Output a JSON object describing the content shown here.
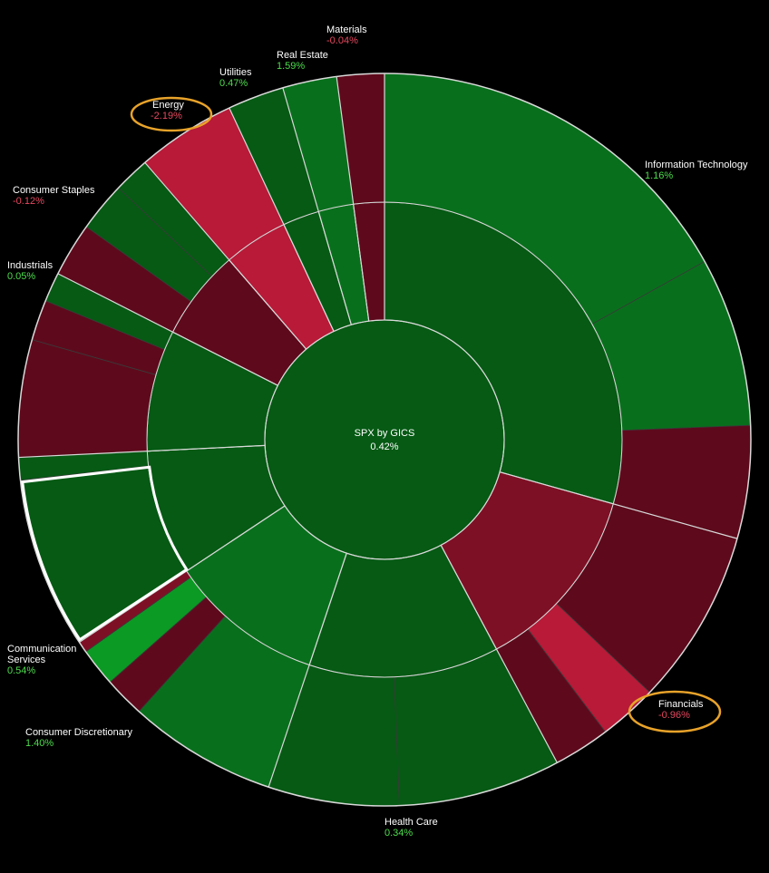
{
  "chart_data": {
    "type": "sunburst",
    "title": "SPX by GICS",
    "total_change": "0.42%",
    "colors": {
      "positive_strong": "#0b9a23",
      "positive": "#08701c",
      "positive_dark": "#065a14",
      "negative_dark": "#5e0a1c",
      "negative": "#7e1025",
      "negative_strong": "#b81a38",
      "highlight_circle": "#e8a32a",
      "highlight_box": "#ffffff",
      "border": "#d9d9d9"
    },
    "sectors": [
      {
        "name": "Information Technology",
        "change": "1.16%",
        "weight": 29.5,
        "sign": "pos",
        "subgroups": [
          {
            "weight": 17.0,
            "color": "#08701c"
          },
          {
            "weight": 7.5,
            "color": "#08701c"
          },
          {
            "weight": 5.0,
            "color": "#5e0a1c"
          }
        ]
      },
      {
        "name": "Financials",
        "change": "-0.96%",
        "weight": 12.9,
        "sign": "neg",
        "subgroups": [
          {
            "weight": 7.8,
            "color": "#5e0a1c"
          },
          {
            "weight": 2.6,
            "color": "#b81a38"
          },
          {
            "weight": 2.5,
            "color": "#5e0a1c"
          }
        ]
      },
      {
        "name": "Health Care",
        "change": "0.34%",
        "weight": 13.0,
        "sign": "pos",
        "subgroups": [
          {
            "weight": 7.2,
            "color": "#065a14"
          },
          {
            "weight": 5.8,
            "color": "#065a14"
          }
        ]
      },
      {
        "name": "Consumer Discretionary",
        "change": "1.40%",
        "weight": 10.6,
        "sign": "pos",
        "subgroups": [
          {
            "weight": 6.6,
            "color": "#08701c"
          },
          {
            "weight": 1.8,
            "color": "#5e0a1c"
          },
          {
            "weight": 1.7,
            "color": "#0b9a23"
          },
          {
            "weight": 0.5,
            "color": "#7e1025"
          }
        ]
      },
      {
        "name": "Communication Services",
        "change": "0.54%",
        "weight": 8.6,
        "sign": "pos",
        "subgroups": [
          {
            "weight": 7.6,
            "color": "#065a14"
          },
          {
            "weight": 1.0,
            "color": "#065a14"
          }
        ]
      },
      {
        "name": "Industrials",
        "change": "0.05%",
        "weight": 8.3,
        "sign": "pos",
        "subgroups": [
          {
            "weight": 5.2,
            "color": "#5e0a1c"
          },
          {
            "weight": 1.8,
            "color": "#5e0a1c"
          },
          {
            "weight": 1.3,
            "color": "#065a14"
          }
        ]
      },
      {
        "name": "Consumer Staples",
        "change": "-0.12%",
        "weight": 6.2,
        "sign": "neg",
        "subgroups": [
          {
            "weight": 2.4,
            "color": "#5e0a1c"
          },
          {
            "weight": 2.2,
            "color": "#065a14"
          },
          {
            "weight": 1.6,
            "color": "#065a14"
          }
        ]
      },
      {
        "name": "Energy",
        "change": "-2.19%",
        "weight": 4.4,
        "sign": "neg",
        "subgroups": [
          {
            "weight": 4.4,
            "color": "#b81a38"
          }
        ]
      },
      {
        "name": "Utilities",
        "change": "0.47%",
        "weight": 2.5,
        "sign": "pos",
        "subgroups": [
          {
            "weight": 2.5,
            "color": "#065a14"
          }
        ]
      },
      {
        "name": "Real Estate",
        "change": "1.59%",
        "weight": 2.4,
        "sign": "pos",
        "subgroups": [
          {
            "weight": 2.4,
            "color": "#08701c"
          }
        ]
      },
      {
        "name": "Materials",
        "change": "-0.04%",
        "weight": 2.1,
        "sign": "neg",
        "subgroups": [
          {
            "weight": 2.1,
            "color": "#5e0a1c"
          }
        ]
      }
    ],
    "sector_label_colors": {
      "positive": "#4ddc4d",
      "negative": "#e8475f",
      "name": "#ffffff"
    },
    "highlights": {
      "circled_sectors": [
        "Energy",
        "Financials"
      ],
      "boxed_subgroup": {
        "sector": "Communication Services",
        "index": 0
      }
    }
  }
}
